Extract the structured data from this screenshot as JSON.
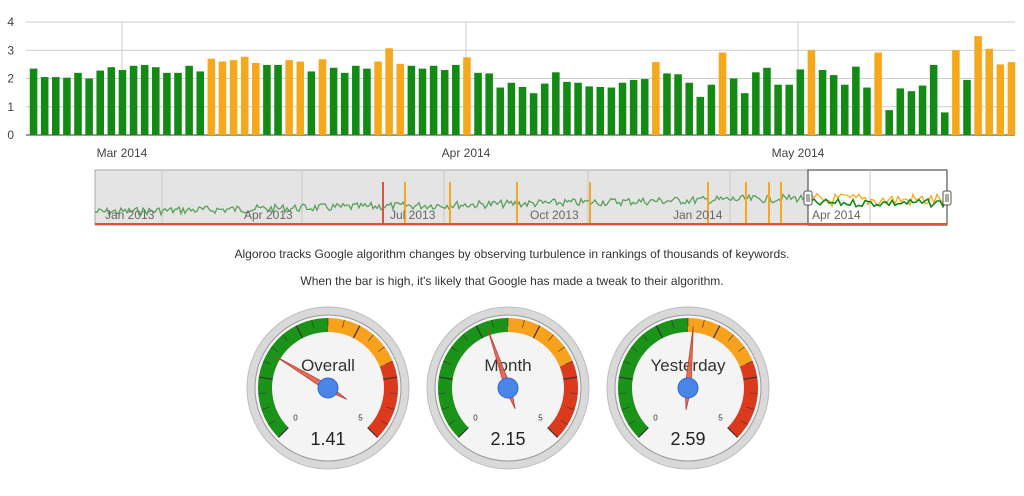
{
  "chart_data": [
    {
      "type": "bar",
      "title": "",
      "xlabel": "",
      "ylabel": "",
      "ylim": [
        0,
        4
      ],
      "y_ticks": [
        "0",
        "1",
        "2",
        "3",
        "4"
      ],
      "x_tick_labels": [
        "Mar 2014",
        "Apr 2014",
        "May 2014"
      ],
      "grid": true,
      "legend": "none",
      "colors": {
        "normal": "#138a13",
        "high": "#f5a81c",
        "grid": "#cccccc"
      },
      "high_threshold": 2.5,
      "values": [
        2.35,
        2.05,
        2.05,
        2.03,
        2.2,
        2.0,
        2.28,
        2.4,
        2.3,
        2.45,
        2.48,
        2.4,
        2.2,
        2.2,
        2.45,
        2.25,
        2.7,
        2.6,
        2.65,
        2.77,
        2.55,
        2.48,
        2.48,
        2.65,
        2.6,
        2.25,
        2.68,
        2.38,
        2.2,
        2.45,
        2.35,
        2.6,
        3.07,
        2.52,
        2.45,
        2.35,
        2.45,
        2.3,
        2.48,
        2.75,
        2.2,
        2.18,
        1.68,
        1.85,
        1.7,
        1.48,
        1.82,
        2.22,
        1.88,
        1.85,
        1.72,
        1.7,
        1.68,
        1.85,
        1.95,
        1.98,
        2.58,
        2.18,
        2.15,
        1.85,
        1.35,
        1.78,
        2.92,
        2.0,
        1.48,
        2.22,
        2.38,
        1.78,
        1.78,
        2.32,
        3.0,
        2.3,
        2.12,
        1.78,
        2.42,
        1.68,
        2.92,
        0.88,
        1.65,
        1.55,
        1.75,
        2.48,
        0.8,
        3.0,
        1.95,
        3.5,
        3.05,
        2.5,
        2.58
      ]
    },
    {
      "type": "line",
      "title": "",
      "x_tick_labels": [
        "Jan 2013",
        "Apr 2013",
        "Jul 2013",
        "Oct 2013",
        "Jan 2014",
        "Apr 2014"
      ],
      "colors": {
        "line": "#5aa05a",
        "selected": "#138a13",
        "spike": "#f5a81c",
        "red": "#e0503a"
      }
    }
  ],
  "description": {
    "line1": "Algoroo tracks Google algorithm changes by observing turbulence in rankings of thousands of keywords.",
    "line2": "When the bar is high, it's likely that Google has made a tweak to their algorithm."
  },
  "gauges": [
    {
      "label": "Overall",
      "value": 1.41,
      "display": "1.41",
      "min": 0,
      "max": 5,
      "min_label": "0",
      "max_label": "5"
    },
    {
      "label": "Month",
      "value": 2.15,
      "display": "2.15",
      "min": 0,
      "max": 5,
      "min_label": "0",
      "max_label": "5"
    },
    {
      "label": "Yesterday",
      "value": 2.59,
      "display": "2.59",
      "min": 0,
      "max": 5,
      "min_label": "0",
      "max_label": "5"
    }
  ]
}
